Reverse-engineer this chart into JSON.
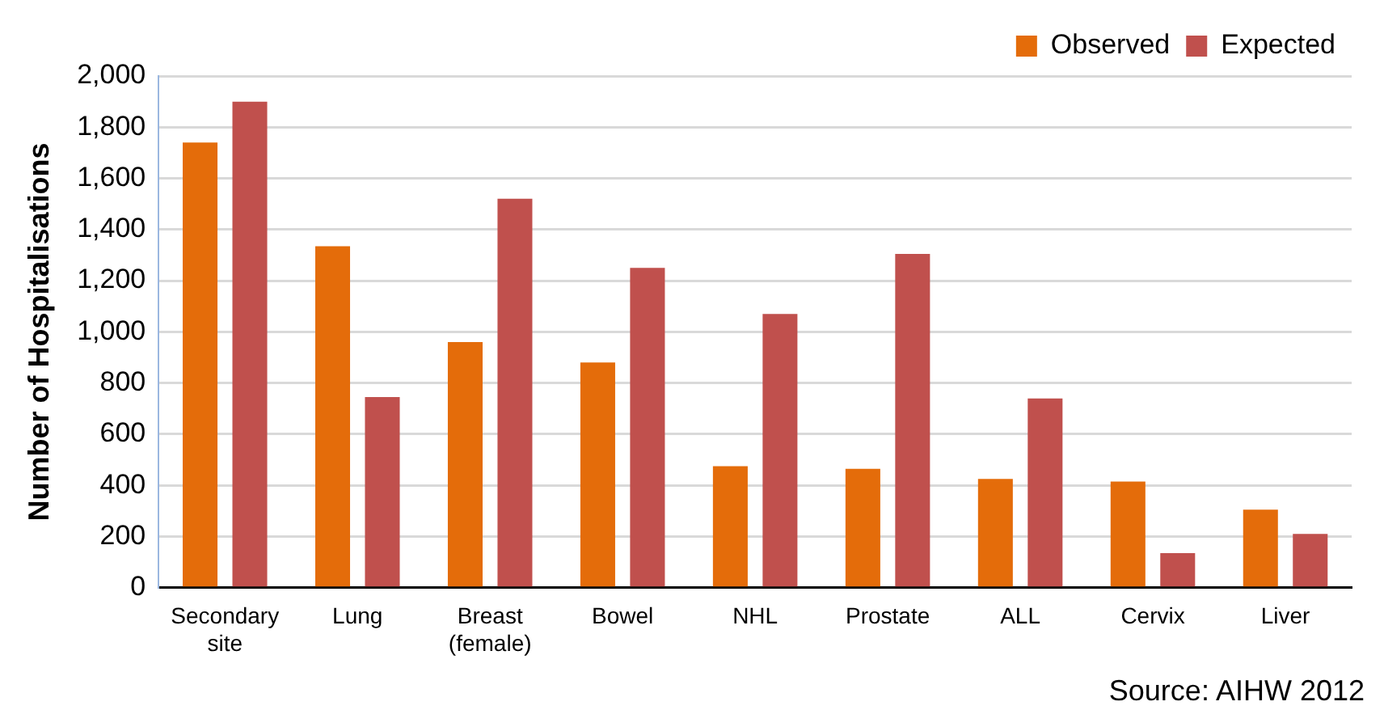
{
  "chart_data": {
    "type": "bar",
    "ylabel": "Number of Hospitalisations",
    "categories": [
      "Secondary site",
      "Lung",
      "Breast (female)",
      "Bowel",
      "NHL",
      "Prostate",
      "ALL",
      "Cervix",
      "Liver"
    ],
    "series": [
      {
        "name": "Observed",
        "color": "#e46c0a",
        "values": [
          1740,
          1335,
          960,
          880,
          475,
          465,
          425,
          415,
          305
        ]
      },
      {
        "name": "Expected",
        "color": "#c0504d",
        "values": [
          1900,
          745,
          1520,
          1250,
          1070,
          1305,
          740,
          135,
          210
        ]
      }
    ],
    "ylim": [
      0,
      2000
    ],
    "yticks": [
      {
        "value": 0,
        "label": "0"
      },
      {
        "value": 200,
        "label": "200"
      },
      {
        "value": 400,
        "label": "400"
      },
      {
        "value": 600,
        "label": "600"
      },
      {
        "value": 800,
        "label": "800"
      },
      {
        "value": 1000,
        "label": "1,000"
      },
      {
        "value": 1200,
        "label": "1,200"
      },
      {
        "value": 1400,
        "label": "1,400"
      },
      {
        "value": 1600,
        "label": "1,600"
      },
      {
        "value": 1800,
        "label": "1,800"
      },
      {
        "value": 2000,
        "label": "2,000"
      }
    ],
    "grid": "y",
    "legend": "top right",
    "annotations": [
      "Source: AIHW 2012"
    ]
  }
}
